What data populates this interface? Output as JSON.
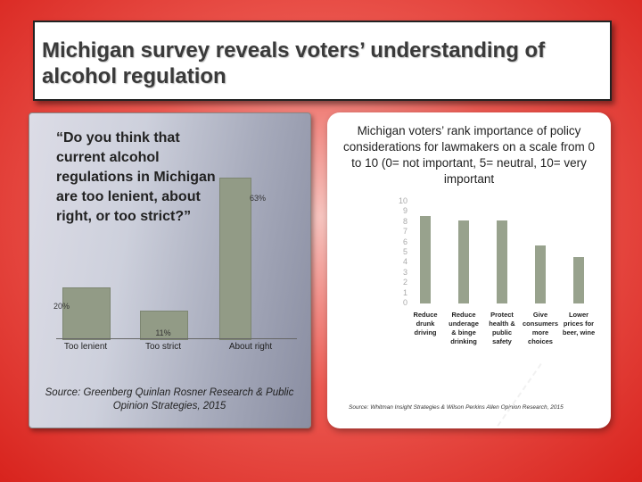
{
  "header": {
    "title": "Michigan survey reveals voters’ understanding of alcohol regulation"
  },
  "left_panel": {
    "question": "“Do you think that current alcohol regulations in Michigan are too lenient, about right, or too strict?”",
    "source": "Source: Greenberg Quinlan Rosner Research & Public Opinion Strategies, 2015"
  },
  "right_panel": {
    "title": "Michigan voters’ rank importance of policy considerations for lawmakers on a scale from 0 to 10 (0= not important, 5= neutral, 10= very important",
    "source": "Source: Whitman Insight Strategies & Wilson Perkins Allen Opinion Research, 2015"
  },
  "colors": {
    "bar": "#929b86",
    "background": "#d8231d"
  },
  "chart_data": [
    {
      "type": "bar",
      "title": "“Do you think that current alcohol regulations in Michigan are too lenient, about right, or too strict?”",
      "categories": [
        "Too lenient",
        "Too strict",
        "About right"
      ],
      "values": [
        20,
        11,
        63
      ],
      "value_labels": [
        "20%",
        "11%",
        "63%"
      ],
      "ylim": [
        0,
        70
      ]
    },
    {
      "type": "bar",
      "title": "Michigan voters’ rank importance of policy considerations for lawmakers on a scale from 0 to 10",
      "categories": [
        "Reduce drunk driving",
        "Reduce underage & binge drinking",
        "Protect health & public safety",
        "Give consumers more choices",
        "Lower prices for beer, wine"
      ],
      "category_lines": [
        [
          "Reduce",
          "drunk",
          "driving"
        ],
        [
          "Reduce",
          "underage",
          "& binge",
          "drinking"
        ],
        [
          "Protect",
          "health &",
          "public",
          "safety"
        ],
        [
          "Give",
          "consumers",
          "more",
          "choices"
        ],
        [
          "Lower",
          "prices for",
          "beer, wine"
        ]
      ],
      "values": [
        8.6,
        8.2,
        8.2,
        5.7,
        4.6
      ],
      "yticks": [
        "0",
        "1",
        "2",
        "3",
        "4",
        "5",
        "6",
        "7",
        "8",
        "9",
        "10"
      ],
      "ylim": [
        0,
        10
      ]
    }
  ]
}
